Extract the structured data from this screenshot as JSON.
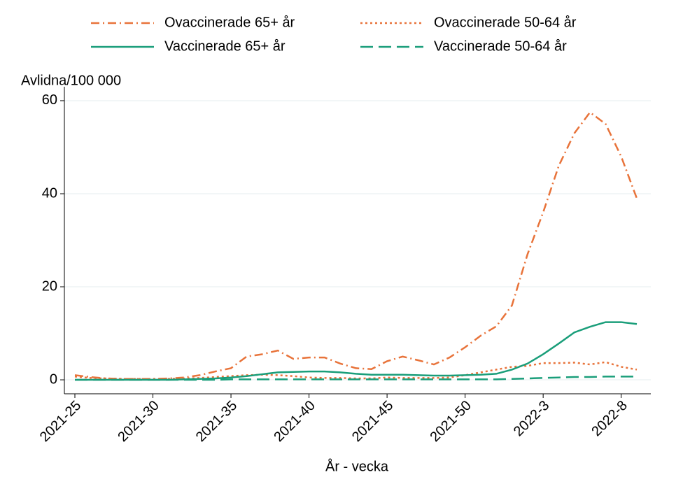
{
  "chart_data": {
    "type": "line",
    "y_label": "Avlidna/100 000",
    "x_label": "År - vecka",
    "categories": [
      "2021-25",
      null,
      null,
      null,
      null,
      "2021-30",
      null,
      null,
      null,
      null,
      "2021-35",
      null,
      null,
      null,
      null,
      "2021-40",
      null,
      null,
      null,
      null,
      "2021-45",
      null,
      null,
      null,
      null,
      "2021-50",
      null,
      null,
      null,
      null,
      "2022-3",
      null,
      null,
      null,
      null,
      "2022-8",
      null
    ],
    "ylim": [
      -3,
      63
    ],
    "yticks": [
      0,
      20,
      40,
      60
    ],
    "grid": true,
    "legend": "top",
    "series": [
      {
        "name": "Ovaccinerade 65+ år",
        "color": "#e8733a",
        "dash": "12 5 2 5",
        "values": [
          1.0,
          0.6,
          0.3,
          0.2,
          0.2,
          0.2,
          0.3,
          0.5,
          1.0,
          1.8,
          2.5,
          5.0,
          5.5,
          6.3,
          4.5,
          4.8,
          4.8,
          3.5,
          2.5,
          2.3,
          4.0,
          5.0,
          4.2,
          3.3,
          4.8,
          7.0,
          9.5,
          11.5,
          16,
          27,
          36,
          46,
          53,
          57.5,
          55,
          48,
          39
        ]
      },
      {
        "name": "Ovaccinerade 50-64 år",
        "color": "#e8733a",
        "dash": "3 4",
        "values": [
          0.7,
          0.4,
          0.3,
          0.2,
          0.2,
          0.2,
          0.2,
          0.3,
          0.4,
          0.6,
          0.8,
          1.0,
          1.1,
          1.0,
          0.8,
          0.5,
          0.4,
          0.4,
          0.3,
          0.3,
          0.5,
          0.4,
          0.4,
          0.4,
          0.5,
          1.0,
          1.6,
          2.2,
          2.8,
          3.0,
          3.6,
          3.6,
          3.7,
          3.3,
          3.8,
          2.8,
          2.2
        ]
      },
      {
        "name": "Vaccinerade 65+ år",
        "color": "#1a9e7a",
        "dash": "",
        "values": [
          0,
          0,
          0,
          0,
          0,
          0,
          0,
          0.1,
          0.2,
          0.3,
          0.5,
          0.8,
          1.2,
          1.6,
          1.7,
          1.8,
          1.8,
          1.6,
          1.3,
          1.1,
          1.1,
          1.1,
          1.0,
          0.9,
          0.9,
          1.0,
          1.1,
          1.3,
          2.2,
          3.5,
          5.5,
          7.8,
          10.2,
          11.4,
          12.4,
          12.4,
          12.0
        ]
      },
      {
        "name": "Vaccinerade 50-64 år",
        "color": "#1a9e7a",
        "dash": "18 8",
        "values": [
          0,
          0,
          0,
          0,
          0,
          0,
          0,
          0,
          0,
          0,
          0.1,
          0.1,
          0.1,
          0.1,
          0.1,
          0.1,
          0.1,
          0.1,
          0.1,
          0.1,
          0.1,
          0.1,
          0.1,
          0.1,
          0.1,
          0.1,
          0.1,
          0.1,
          0.2,
          0.3,
          0.4,
          0.5,
          0.6,
          0.6,
          0.7,
          0.7,
          0.7
        ]
      }
    ]
  }
}
